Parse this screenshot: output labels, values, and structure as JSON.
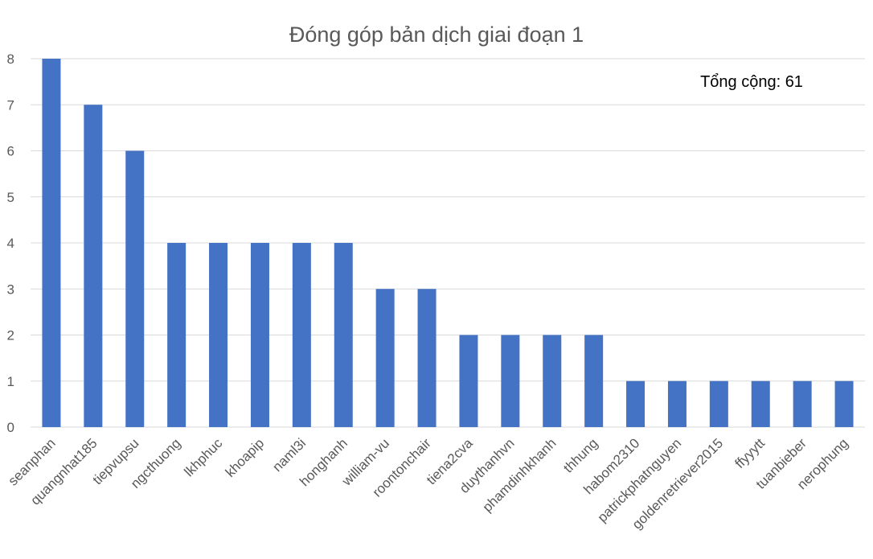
{
  "chart_data": {
    "type": "bar",
    "title": "Đóng góp bản dịch giai đoạn 1",
    "annotation": "Tổng cộng: 61",
    "categories": [
      "seanphan",
      "quangnhat185",
      "tiepvupsu",
      "ngcthuong",
      "lkhphuc",
      "khoapip",
      "naml3i",
      "honghanh",
      "william-vu",
      "roontonchair",
      "tiena2cva",
      "duythanhvn",
      "phamdinhkhanh",
      "thhung",
      "habom2310",
      "patrickphatnguyen",
      "goldenretriever2015",
      "ffyyytt",
      "tuanbieber",
      "nerophung"
    ],
    "values": [
      8,
      7,
      6,
      4,
      4,
      4,
      4,
      4,
      3,
      3,
      2,
      2,
      2,
      2,
      1,
      1,
      1,
      1,
      1,
      1
    ],
    "yticks": [
      "0",
      "1",
      "2",
      "3",
      "4",
      "5",
      "6",
      "7",
      "8"
    ],
    "ylim": [
      0,
      8
    ],
    "xlabel": "",
    "ylabel": "",
    "grid": true,
    "legend": "none",
    "bar_color": "#4472c4"
  }
}
